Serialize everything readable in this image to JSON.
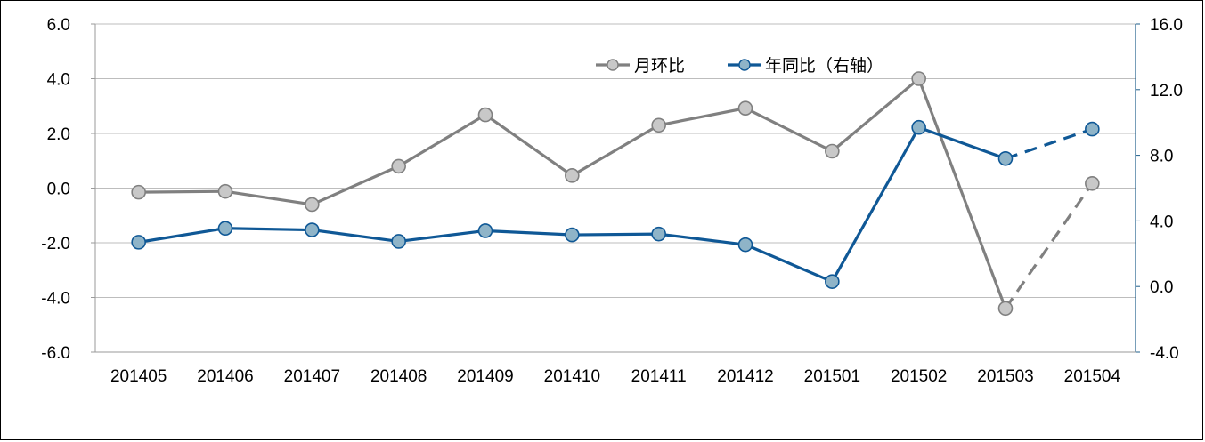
{
  "chart_data": {
    "type": "line",
    "categories": [
      "201405",
      "201406",
      "201407",
      "201408",
      "201409",
      "201410",
      "201411",
      "201412",
      "201501",
      "201502",
      "201503",
      "201504"
    ],
    "y_left": {
      "ylim": [
        -6,
        6
      ],
      "ticks": [
        "6.0",
        "4.0",
        "2.0",
        "0.0",
        "-2.0",
        "-4.0",
        "-6.0"
      ],
      "tick_values": [
        6,
        4,
        2,
        0,
        -2,
        -4,
        -6
      ]
    },
    "y_right": {
      "ylim": [
        -4,
        16
      ],
      "ticks": [
        "16.0",
        "12.0",
        "8.0",
        "4.0",
        "0.0",
        "-4.0"
      ],
      "tick_values": [
        16,
        12,
        8,
        4,
        0,
        -4
      ]
    },
    "grid": "horizontal",
    "legend_position": "top-right",
    "series": [
      {
        "name": "月环比",
        "axis": "left",
        "color": "#808080",
        "marker_fill": "#c8c8c8",
        "values": [
          -0.15,
          -0.12,
          -0.6,
          0.8,
          2.68,
          0.46,
          2.3,
          2.92,
          1.35,
          4.0,
          -4.4,
          0.17
        ],
        "dashed_from_index": 10
      },
      {
        "name": "年同比（右轴）",
        "axis": "right",
        "color": "#0f5896",
        "marker_fill": "#8fb4c8",
        "values": [
          2.7,
          3.55,
          3.45,
          2.75,
          3.4,
          3.15,
          3.2,
          2.55,
          0.3,
          9.7,
          7.8,
          9.6
        ],
        "dashed_from_index": 10
      }
    ]
  }
}
